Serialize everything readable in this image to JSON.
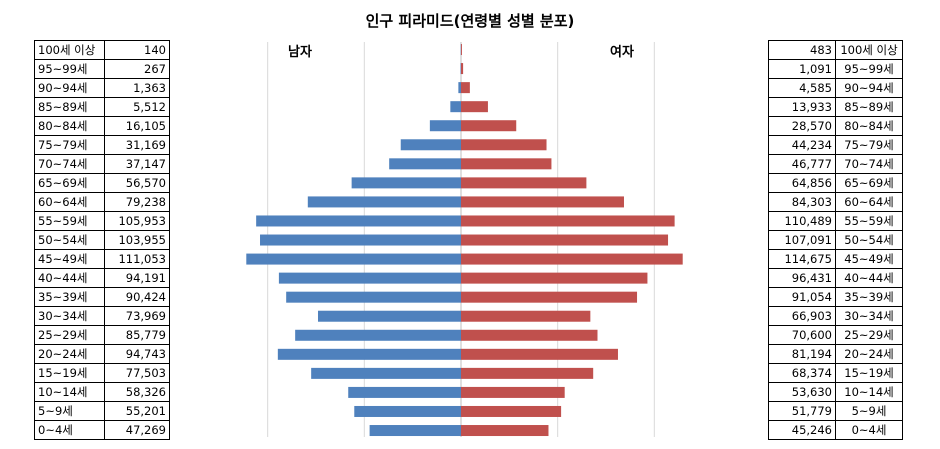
{
  "chart_data": {
    "type": "bar",
    "orientation": "horizontal-pyramid",
    "title": "인구 피라미드(연령별 성별 분포)",
    "categories": [
      "100세 이상",
      "95~99세",
      "90~94세",
      "85~89세",
      "80~84세",
      "75~79세",
      "70~74세",
      "65~69세",
      "60~64세",
      "55~59세",
      "50~54세",
      "45~49세",
      "40~44세",
      "35~39세",
      "30~34세",
      "25~29세",
      "20~24세",
      "15~19세",
      "10~14세",
      "5~9세",
      "0~4세"
    ],
    "series": [
      {
        "name": "남자",
        "color": "#4F81BD",
        "values": [
          140,
          267,
          1363,
          5512,
          16105,
          31169,
          37147,
          56570,
          79238,
          105953,
          103955,
          111053,
          94191,
          90424,
          73969,
          85779,
          94743,
          77503,
          58326,
          55201,
          47269
        ],
        "labels": [
          "140",
          "267",
          "1,363",
          "5,512",
          "16,105",
          "31,169",
          "37,147",
          "56,570",
          "79,238",
          "105,953",
          "103,955",
          "111,053",
          "94,191",
          "90,424",
          "73,969",
          "85,779",
          "94,743",
          "77,503",
          "58,326",
          "55,201",
          "47,269"
        ]
      },
      {
        "name": "여자",
        "color": "#C0504D",
        "values": [
          483,
          1091,
          4585,
          13933,
          28570,
          44234,
          46777,
          64856,
          84303,
          110489,
          107091,
          114675,
          96431,
          91054,
          66903,
          70600,
          81194,
          68374,
          53630,
          51779,
          45246
        ],
        "labels": [
          "483",
          "1,091",
          "4,585",
          "13,933",
          "28,570",
          "44,234",
          "46,777",
          "64,856",
          "84,303",
          "110,489",
          "107,091",
          "114,675",
          "96,431",
          "91,054",
          "66,903",
          "70,600",
          "81,194",
          "68,374",
          "53,630",
          "51,779",
          "45,246"
        ]
      }
    ],
    "xlim": [
      -150000,
      150000
    ],
    "grid": true,
    "legend": "none"
  }
}
